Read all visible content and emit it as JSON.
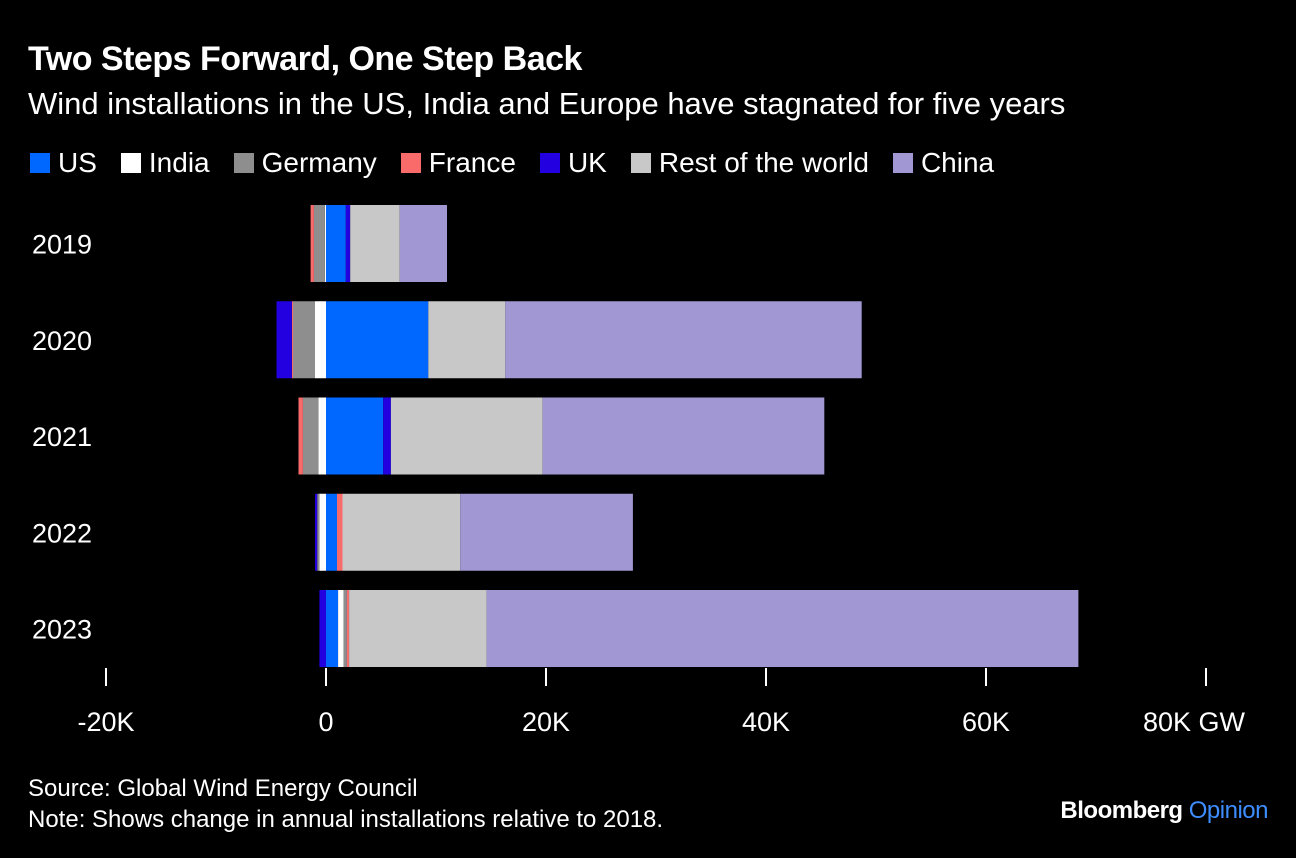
{
  "chart_data": {
    "type": "bar",
    "orientation": "horizontal",
    "stacked": true,
    "title": "Two Steps Forward, One Step Back",
    "subtitle": "Wind installations in the US, India and Europe have stagnated for five years",
    "categories": [
      "2019",
      "2020",
      "2021",
      "2022",
      "2023"
    ],
    "series": [
      {
        "name": "US",
        "color": "#0068ff",
        "values": [
          1800,
          9300,
          5200,
          1000,
          1100
        ]
      },
      {
        "name": "India",
        "color": "#ffffff",
        "values": [
          -100,
          -1000,
          -700,
          -600,
          500
        ]
      },
      {
        "name": "Germany",
        "color": "#8e8e8e",
        "values": [
          -1000,
          -2000,
          -1400,
          -200,
          300
        ]
      },
      {
        "name": "France",
        "color": "#f96b6b",
        "values": [
          -300,
          -100,
          -400,
          500,
          200
        ]
      },
      {
        "name": "UK",
        "color": "#2200e0",
        "values": [
          400,
          -1400,
          700,
          -200,
          -600
        ]
      },
      {
        "name": "Rest of the world",
        "color": "#c8c8c8",
        "values": [
          4500,
          7000,
          13800,
          10700,
          12500
        ]
      },
      {
        "name": "China",
        "color": "#a197d2",
        "values": [
          4300,
          32400,
          25600,
          15700,
          53800
        ]
      }
    ],
    "xlim": [
      -20000,
      80000
    ],
    "xticks": [
      -20000,
      0,
      20000,
      40000,
      60000,
      80000
    ],
    "xtick_labels": [
      "-20K",
      "0",
      "20K",
      "40K",
      "60K",
      "80K GW"
    ],
    "xlabel": "",
    "ylabel": "",
    "legend_position": "top"
  },
  "footer": {
    "source": "Source: Global Wind Energy Council",
    "note": "Note: Shows change in annual installations relative to 2018."
  },
  "brand": {
    "name": "Bloomberg",
    "section": "Opinion"
  }
}
